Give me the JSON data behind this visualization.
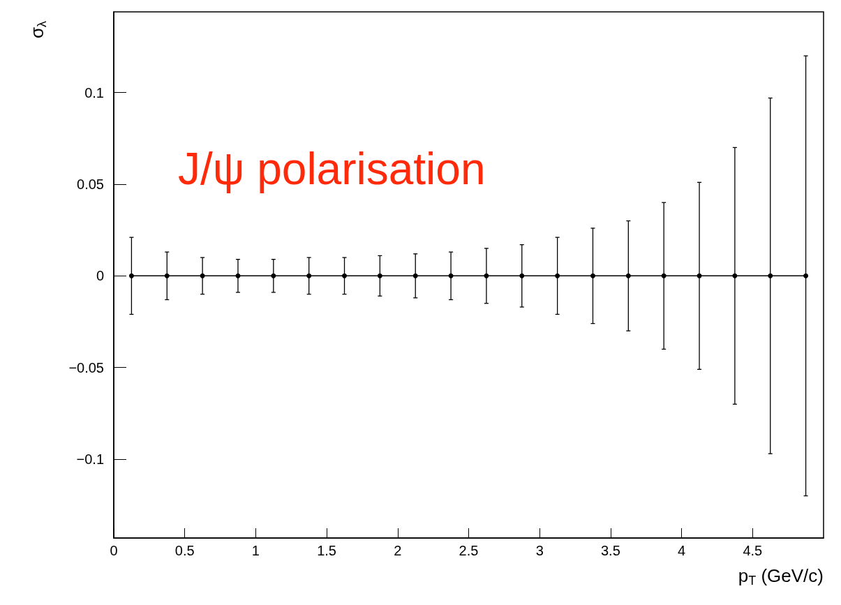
{
  "chart_data": {
    "type": "line",
    "xlabel": "p$_{T}$ (GeV/c)",
    "ylabel": "σ$_{λ}$",
    "x": [
      0.125,
      0.375,
      0.625,
      0.875,
      1.125,
      1.375,
      1.625,
      1.875,
      2.125,
      2.375,
      2.625,
      2.875,
      3.125,
      3.375,
      3.625,
      3.875,
      4.125,
      4.375,
      4.625,
      4.875
    ],
    "series": [
      {
        "color": "#000000",
        "values": [
          0,
          0,
          0,
          0,
          0,
          0,
          0,
          0,
          0,
          0,
          0,
          0,
          0,
          0,
          0,
          0,
          0,
          0,
          0,
          0
        ],
        "errors": [
          0.021,
          0.013,
          0.01,
          0.009,
          0.009,
          0.01,
          0.01,
          0.011,
          0.012,
          0.013,
          0.015,
          0.017,
          0.021,
          0.026,
          0.03,
          0.04,
          0.051,
          0.07,
          0.097,
          0.12
        ]
      }
    ],
    "xlim": [
      0,
      5
    ],
    "xticks": [
      0,
      0.5,
      1,
      1.5,
      2,
      2.5,
      3,
      3.5,
      4,
      4.5
    ],
    "ylim": [
      -0.143,
      0.144
    ],
    "yticks": [
      {
        "value": -0.1,
        "label": "−0.1"
      },
      {
        "value": -0.05,
        "label": "−0.05"
      },
      0,
      0.05,
      0.1
    ],
    "marker": "circle",
    "line_style": "solid",
    "annotations": [
      "J/ψ polarisation"
    ]
  }
}
